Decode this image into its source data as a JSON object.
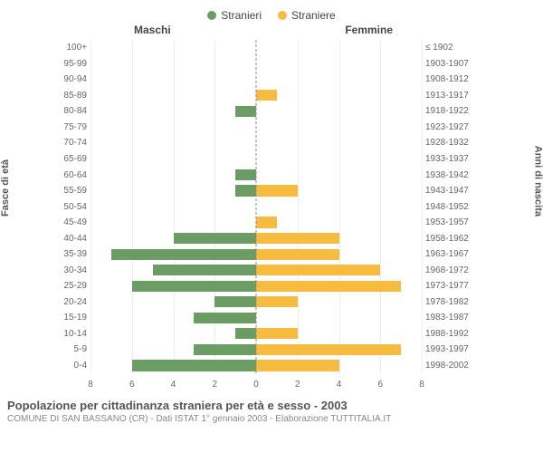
{
  "legend": {
    "male": {
      "label": "Stranieri",
      "color": "#6b9c63"
    },
    "female": {
      "label": "Straniere",
      "color": "#f6bb3f"
    }
  },
  "headers": {
    "male": "Maschi",
    "female": "Femmine"
  },
  "axis": {
    "left_title": "Fasce di età",
    "right_title": "Anni di nascita",
    "xmax": 8,
    "xtick_step": 2,
    "xticks_left": [
      8,
      6,
      4,
      2,
      0
    ],
    "xticks_right": [
      0,
      2,
      4,
      6,
      8
    ],
    "grid_color": "#eeeeee",
    "center_dash_color": "#888888"
  },
  "rows": [
    {
      "age": "100+",
      "birth": "≤ 1902",
      "m": 0,
      "f": 0
    },
    {
      "age": "95-99",
      "birth": "1903-1907",
      "m": 0,
      "f": 0
    },
    {
      "age": "90-94",
      "birth": "1908-1912",
      "m": 0,
      "f": 0
    },
    {
      "age": "85-89",
      "birth": "1913-1917",
      "m": 0,
      "f": 1
    },
    {
      "age": "80-84",
      "birth": "1918-1922",
      "m": 1,
      "f": 0
    },
    {
      "age": "75-79",
      "birth": "1923-1927",
      "m": 0,
      "f": 0
    },
    {
      "age": "70-74",
      "birth": "1928-1932",
      "m": 0,
      "f": 0
    },
    {
      "age": "65-69",
      "birth": "1933-1937",
      "m": 0,
      "f": 0
    },
    {
      "age": "60-64",
      "birth": "1938-1942",
      "m": 1,
      "f": 0
    },
    {
      "age": "55-59",
      "birth": "1943-1947",
      "m": 1,
      "f": 2
    },
    {
      "age": "50-54",
      "birth": "1948-1952",
      "m": 0,
      "f": 0
    },
    {
      "age": "45-49",
      "birth": "1953-1957",
      "m": 0,
      "f": 1
    },
    {
      "age": "40-44",
      "birth": "1958-1962",
      "m": 4,
      "f": 4
    },
    {
      "age": "35-39",
      "birth": "1963-1967",
      "m": 7,
      "f": 4
    },
    {
      "age": "30-34",
      "birth": "1968-1972",
      "m": 5,
      "f": 6
    },
    {
      "age": "25-29",
      "birth": "1973-1977",
      "m": 6,
      "f": 7
    },
    {
      "age": "20-24",
      "birth": "1978-1982",
      "m": 2,
      "f": 2
    },
    {
      "age": "15-19",
      "birth": "1983-1987",
      "m": 3,
      "f": 0
    },
    {
      "age": "10-14",
      "birth": "1988-1992",
      "m": 1,
      "f": 2
    },
    {
      "age": "5-9",
      "birth": "1993-1997",
      "m": 3,
      "f": 7
    },
    {
      "age": "0-4",
      "birth": "1998-2002",
      "m": 6,
      "f": 4
    }
  ],
  "footer": {
    "title": "Popolazione per cittadinanza straniera per età e sesso - 2003",
    "subtitle": "COMUNE DI SAN BASSANO (CR) - Dati ISTAT 1° gennaio 2003 - Elaborazione TUTTITALIA.IT"
  }
}
